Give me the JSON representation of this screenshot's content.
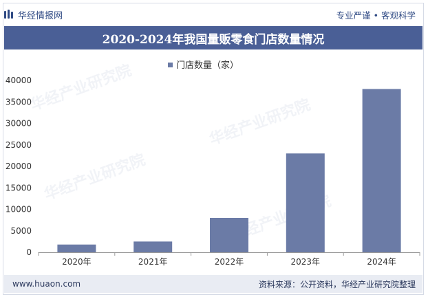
{
  "header": {
    "brand": "华经情报网",
    "slogan": "专业严谨 • 客观科学"
  },
  "title": "2020-2024年我国量贩零食门店数量情况",
  "footer": {
    "site": "www.huaon.com",
    "source": "资料来源：公开资料，华经产业研究院整理"
  },
  "colors": {
    "bar": "#6b7ba6",
    "title_bg": "#4a5f96",
    "brand": "#2f4a84"
  },
  "chart_data": {
    "type": "bar",
    "title": "2020-2024年我国量贩零食门店数量情况",
    "categories": [
      "2020年",
      "2021年",
      "2022年",
      "2023年",
      "2024年"
    ],
    "series": [
      {
        "name": "门店数量（家）",
        "values": [
          1800,
          2500,
          8000,
          23000,
          38000
        ]
      }
    ],
    "ylim": [
      0,
      40000
    ],
    "yticks": [
      0,
      5000,
      10000,
      15000,
      20000,
      25000,
      30000,
      35000,
      40000
    ],
    "xlabel": "",
    "ylabel": "",
    "legend": "top-center",
    "grid": false
  }
}
